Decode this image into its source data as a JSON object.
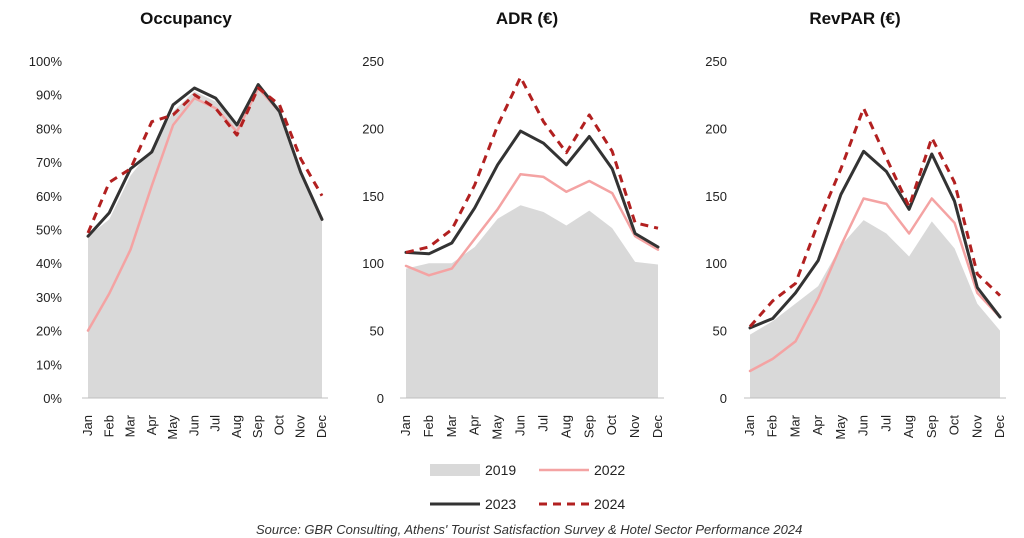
{
  "months": [
    "Jan",
    "Feb",
    "Mar",
    "Apr",
    "May",
    "Jun",
    "Jul",
    "Aug",
    "Sep",
    "Oct",
    "Nov",
    "Dec"
  ],
  "series_styles": {
    "2019": {
      "color": "#d9d9d9",
      "kind": "area"
    },
    "2022": {
      "color": "#f4a3a3",
      "kind": "line"
    },
    "2023": {
      "color": "#333333",
      "kind": "line"
    },
    "2024": {
      "color": "#b22020",
      "kind": "dashed"
    }
  },
  "legend": {
    "items": [
      "2019",
      "2022",
      "2023",
      "2024"
    ]
  },
  "source": "Source: GBR Consulting, Athens' Tourist Satisfaction Survey & Hotel Sector Performance 2024",
  "chart_data": [
    {
      "type": "line",
      "title": "Occupancy",
      "x": [
        "Jan",
        "Feb",
        "Mar",
        "Apr",
        "May",
        "Jun",
        "Jul",
        "Aug",
        "Sep",
        "Oct",
        "Nov",
        "Dec"
      ],
      "ylim": [
        0,
        100
      ],
      "yticks": [
        "0%",
        "10%",
        "20%",
        "30%",
        "40%",
        "50%",
        "60%",
        "70%",
        "80%",
        "90%",
        "100%"
      ],
      "series": [
        {
          "name": "2019",
          "values": [
            48,
            53,
            66,
            74,
            85,
            91,
            88,
            81,
            93,
            86,
            68,
            53
          ]
        },
        {
          "name": "2022",
          "values": [
            20,
            31,
            44,
            63,
            81,
            89,
            86,
            79,
            92,
            85,
            67,
            53
          ]
        },
        {
          "name": "2023",
          "values": [
            48,
            55,
            68,
            73,
            87,
            92,
            89,
            81,
            93,
            85,
            67,
            53
          ]
        },
        {
          "name": "2024",
          "values": [
            49,
            64,
            68,
            82,
            84,
            90,
            86,
            78,
            92,
            87,
            71,
            60
          ]
        }
      ]
    },
    {
      "type": "line",
      "title": "ADR (€)",
      "x": [
        "Jan",
        "Feb",
        "Mar",
        "Apr",
        "May",
        "Jun",
        "Jul",
        "Aug",
        "Sep",
        "Oct",
        "Nov",
        "Dec"
      ],
      "ylim": [
        0,
        250
      ],
      "yticks": [
        "0",
        "50",
        "100",
        "150",
        "200",
        "250"
      ],
      "series": [
        {
          "name": "2019",
          "values": [
            96,
            100,
            100,
            112,
            133,
            143,
            138,
            128,
            139,
            126,
            101,
            99
          ]
        },
        {
          "name": "2022",
          "values": [
            98,
            91,
            96,
            118,
            140,
            166,
            164,
            153,
            161,
            152,
            120,
            110
          ]
        },
        {
          "name": "2023",
          "values": [
            108,
            107,
            115,
            141,
            173,
            198,
            189,
            173,
            194,
            170,
            122,
            112
          ]
        },
        {
          "name": "2024",
          "values": [
            108,
            112,
            125,
            158,
            202,
            238,
            205,
            182,
            210,
            183,
            130,
            126
          ]
        }
      ]
    },
    {
      "type": "line",
      "title": "RevPAR (€)",
      "x": [
        "Jan",
        "Feb",
        "Mar",
        "Apr",
        "May",
        "Jun",
        "Jul",
        "Aug",
        "Sep",
        "Oct",
        "Nov",
        "Dec"
      ],
      "ylim": [
        0,
        250
      ],
      "yticks": [
        "0",
        "50",
        "100",
        "150",
        "200",
        "250"
      ],
      "series": [
        {
          "name": "2019",
          "values": [
            47,
            57,
            70,
            83,
            113,
            132,
            122,
            105,
            131,
            111,
            70,
            50
          ]
        },
        {
          "name": "2022",
          "values": [
            20,
            29,
            42,
            74,
            113,
            148,
            144,
            122,
            148,
            130,
            78,
            60
          ]
        },
        {
          "name": "2023",
          "values": [
            52,
            59,
            78,
            102,
            151,
            183,
            168,
            140,
            181,
            146,
            82,
            60
          ]
        },
        {
          "name": "2024",
          "values": [
            53,
            72,
            85,
            130,
            170,
            215,
            178,
            142,
            193,
            160,
            92,
            76
          ]
        }
      ]
    }
  ]
}
